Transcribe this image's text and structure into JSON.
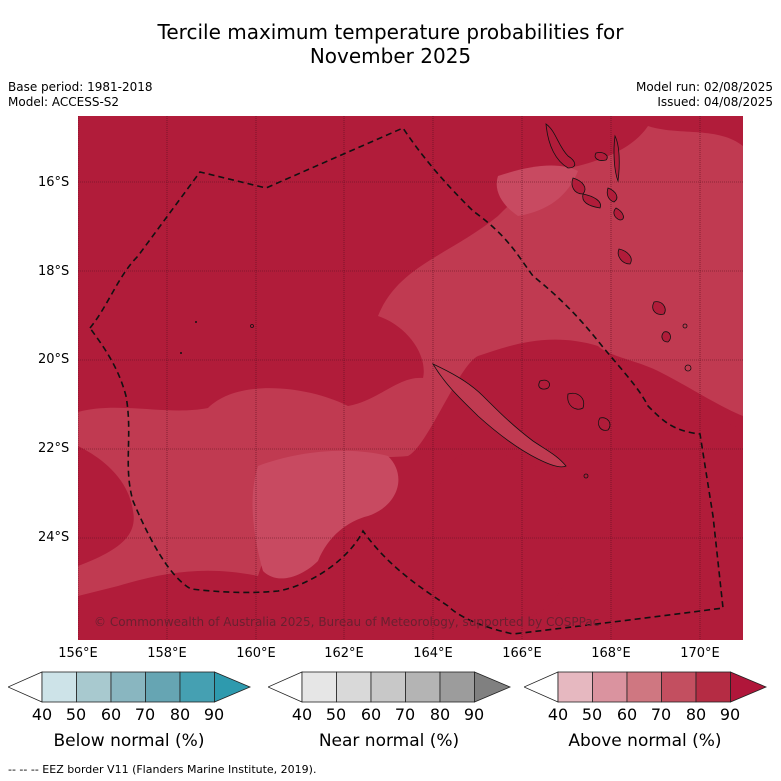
{
  "title_line1": "Tercile maximum temperature probabilities for",
  "title_line2": "November 2025",
  "base_period": "Base period: 1981-2018",
  "model": "Model: ACCESS-S2",
  "model_run": "Model run: 02/08/2025",
  "issued": "Issued: 04/08/2025",
  "copyright": "© Commonwealth of Australia 2025, Bureau of Meteorology, supported by COSPPac",
  "lat_labels": [
    "16°S",
    "18°S",
    "20°S",
    "22°S",
    "24°S"
  ],
  "lon_labels": [
    "156°E",
    "158°E",
    "160°E",
    "162°E",
    "164°E",
    "166°E",
    "168°E",
    "170°E"
  ],
  "colorbars": [
    {
      "label": "Below normal (%)",
      "ticks": [
        "40",
        "50",
        "60",
        "70",
        "80",
        "90"
      ],
      "colors": [
        "#ffffff",
        "#cde3e8",
        "#a8c9cf",
        "#89b6c0",
        "#66a5b3",
        "#45a0b2",
        "#2e9aae"
      ]
    },
    {
      "label": "Near normal (%)",
      "ticks": [
        "40",
        "50",
        "60",
        "70",
        "80",
        "90"
      ],
      "colors": [
        "#ffffff",
        "#e6e6e6",
        "#d9d9d9",
        "#c8c8c8",
        "#b4b4b4",
        "#9c9c9c",
        "#808080"
      ]
    },
    {
      "label": "Above normal (%)",
      "ticks": [
        "40",
        "50",
        "60",
        "70",
        "80",
        "90"
      ],
      "colors": [
        "#ffffff",
        "#e6b8c0",
        "#da939f",
        "#cf7781",
        "#c34f60",
        "#b52c44",
        "#b0163a"
      ]
    }
  ],
  "footer": "--  --  -- EEZ border V11 (Flanders Marine Institute, 2019).",
  "colors": {
    "dark": "#b11c3a",
    "mid": "#c03a51",
    "light": "#c84a61",
    "lightest": "#cf5e70"
  }
}
